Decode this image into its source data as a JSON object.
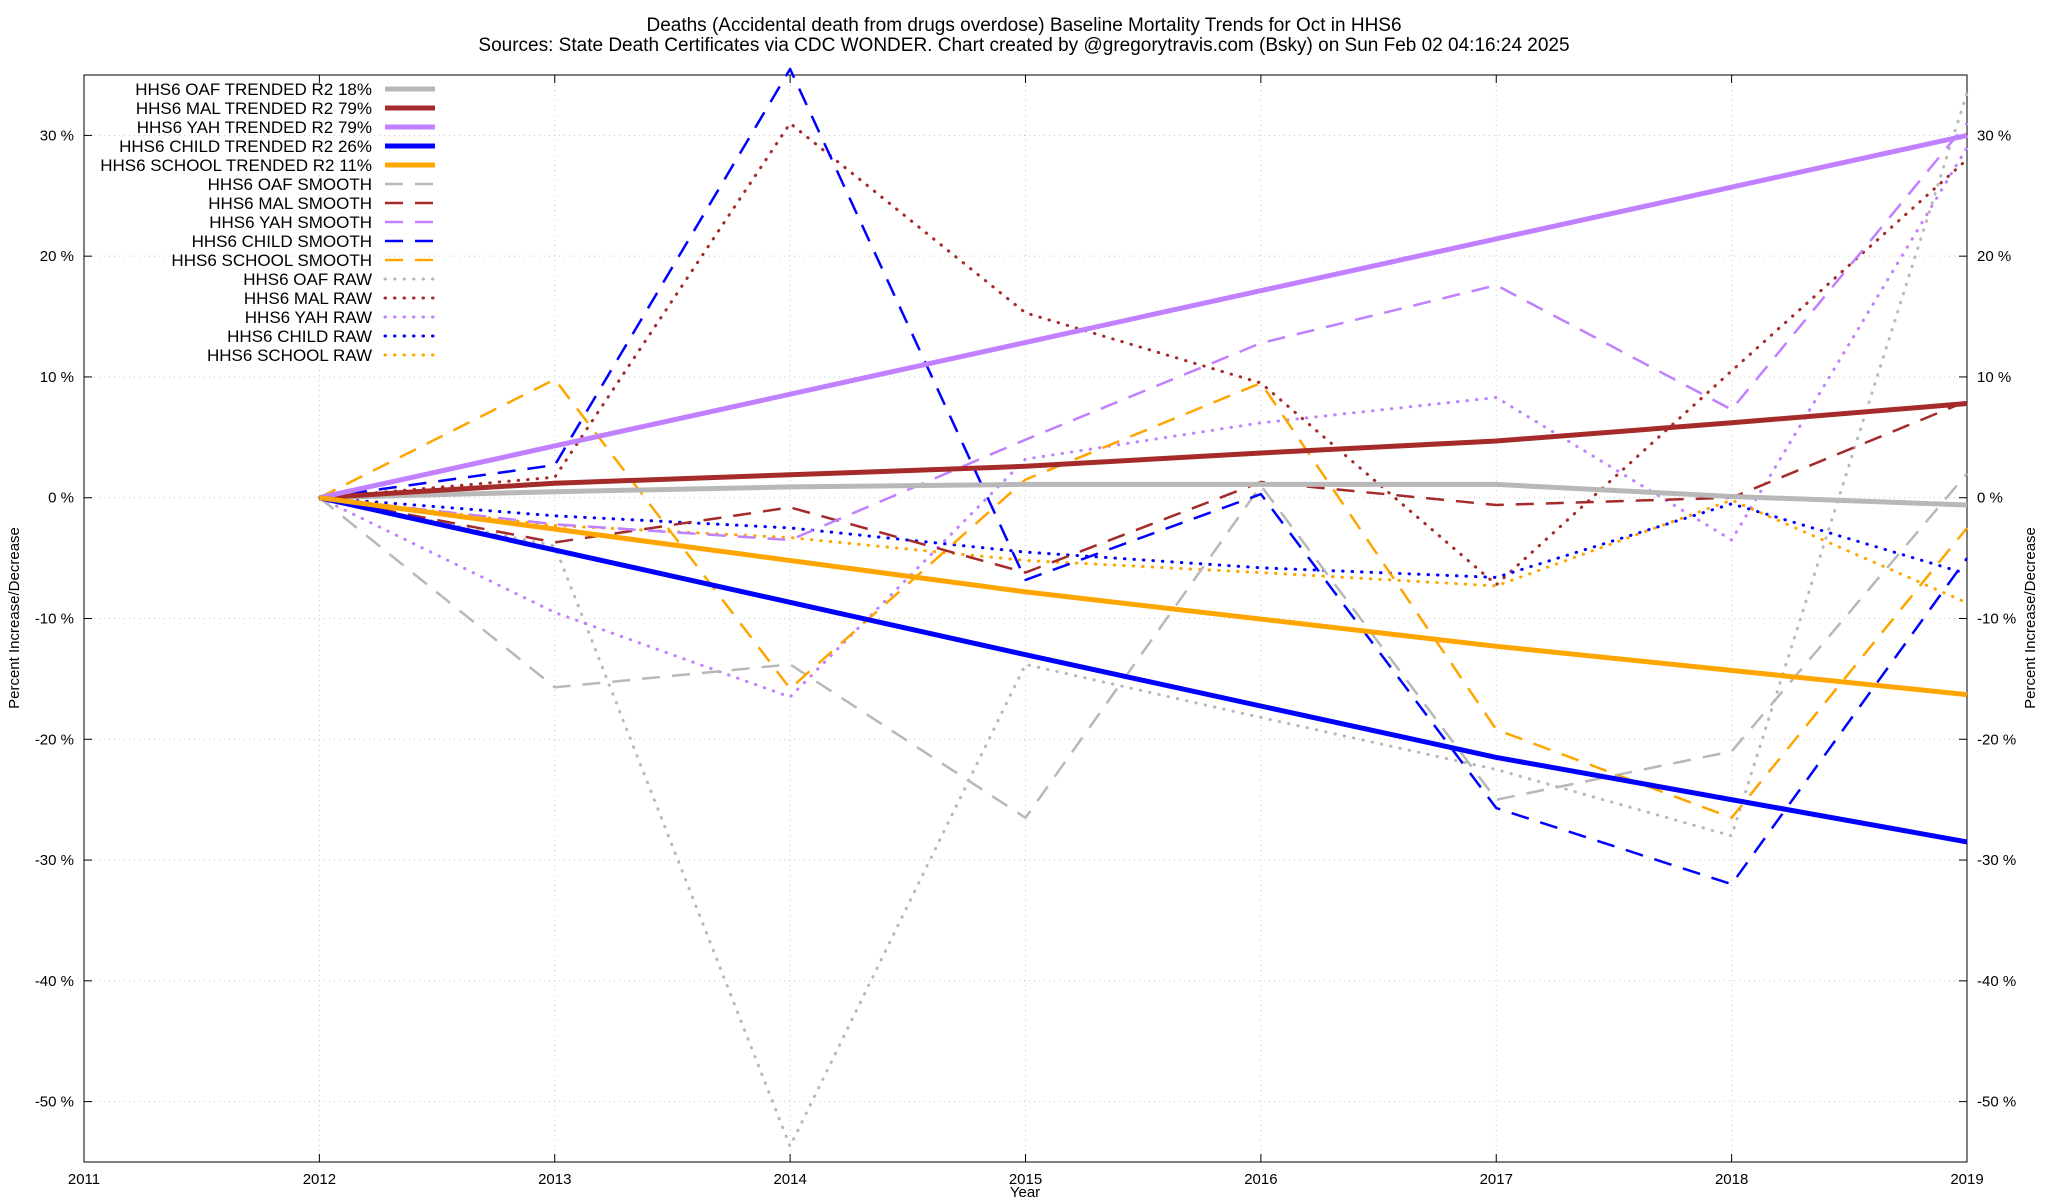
{
  "chart_data": {
    "type": "line",
    "title_line1": "Deaths (Accidental death from drugs overdose)  Baseline Mortality Trends for Oct in HHS6",
    "title_line2": "Sources: State Death Certificates via CDC WONDER.                Chart created by @gregorytravis.com (Bsky) on Sun Feb 02 04:16:24 2025",
    "xlabel": "Year",
    "ylabel_left": "Percent Increase/Decrease",
    "ylabel_right": "Percent Increase/Decrease",
    "xlim": [
      2011,
      2019
    ],
    "ylim": [
      -55,
      35
    ],
    "x_ticks": [
      2011,
      2012,
      2013,
      2014,
      2015,
      2016,
      2017,
      2018,
      2019
    ],
    "y_ticks": [
      {
        "value": 30,
        "label": "30 %"
      },
      {
        "value": 20,
        "label": "20 %"
      },
      {
        "value": 10,
        "label": "10 %"
      },
      {
        "value": 0,
        "label": "0 %"
      },
      {
        "value": -10,
        "label": "-10 %"
      },
      {
        "value": -20,
        "label": "-20 %"
      },
      {
        "value": -30,
        "label": "-30 %"
      },
      {
        "value": -40,
        "label": "-40 %"
      },
      {
        "value": -50,
        "label": "-50 %"
      }
    ],
    "grid": true,
    "legend_position": "top-left",
    "series": [
      {
        "name": "HHS6 OAF TRENDED R2  18%",
        "style": "trended",
        "color": "#b8b8b8",
        "x": [
          2012,
          2013,
          2014,
          2015,
          2016,
          2017,
          2018,
          2019
        ],
        "y": [
          0,
          0.5,
          0.9,
          1.1,
          1.1,
          1.1,
          0.1,
          -0.6
        ]
      },
      {
        "name": "HHS6 MAL TRENDED R2  79%",
        "style": "trended",
        "color": "#a52a2a",
        "x": [
          2012,
          2013,
          2014,
          2015,
          2016,
          2017,
          2018,
          2019
        ],
        "y": [
          0,
          1.2,
          1.9,
          2.6,
          3.7,
          4.7,
          6.2,
          7.8
        ]
      },
      {
        "name": "HHS6 YAH TRENDED R2  79%",
        "style": "trended",
        "color": "#c080ff",
        "x": [
          2012,
          2019
        ],
        "y": [
          0,
          30.0
        ]
      },
      {
        "name": "HHS6 CHILD TRENDED R2  26%",
        "style": "trended",
        "color": "#0000ff",
        "x": [
          2012,
          2015,
          2017,
          2019
        ],
        "y": [
          0,
          -13.0,
          -21.5,
          -28.5
        ]
      },
      {
        "name": "HHS6 SCHOOL TRENDED R2  11%",
        "style": "trended",
        "color": "#ffa500",
        "x": [
          2012,
          2015,
          2017,
          2019
        ],
        "y": [
          0,
          -7.8,
          -12.3,
          -16.3
        ]
      },
      {
        "name": "HHS6 OAF SMOOTH",
        "style": "smooth",
        "color": "#b8b8b8",
        "x": [
          2012,
          2013,
          2014,
          2015,
          2016,
          2017,
          2018,
          2019
        ],
        "y": [
          0,
          -15.7,
          -13.8,
          -26.5,
          1.0,
          -25.0,
          -21.0,
          2.0
        ]
      },
      {
        "name": "HHS6 MAL SMOOTH",
        "style": "smooth",
        "color": "#a52a2a",
        "x": [
          2012,
          2013,
          2014,
          2015,
          2016,
          2017,
          2018,
          2019
        ],
        "y": [
          0,
          -3.7,
          -0.8,
          -6.2,
          1.3,
          -0.6,
          0,
          8.0
        ]
      },
      {
        "name": "HHS6 YAH SMOOTH",
        "style": "smooth",
        "color": "#c080ff",
        "x": [
          2012,
          2013,
          2014,
          2015,
          2016,
          2017,
          2018,
          2019
        ],
        "y": [
          0,
          -2.2,
          -3.5,
          4.8,
          12.8,
          17.6,
          7.3,
          31.0
        ]
      },
      {
        "name": "HHS6 CHILD SMOOTH",
        "style": "smooth",
        "color": "#0000ff",
        "x": [
          2012,
          2013,
          2014,
          2015,
          2016,
          2017,
          2018,
          2019
        ],
        "y": [
          0,
          2.7,
          35.5,
          -6.8,
          0.3,
          -25.7,
          -32.0,
          -5.0
        ]
      },
      {
        "name": "HHS6 SCHOOL SMOOTH",
        "style": "smooth",
        "color": "#ffa500",
        "x": [
          2012,
          2013,
          2014,
          2015,
          2016,
          2017,
          2018,
          2019
        ],
        "y": [
          0,
          9.8,
          -15.8,
          1.5,
          9.5,
          -19.2,
          -26.5,
          -2.5
        ]
      },
      {
        "name": "HHS6 OAF RAW",
        "style": "raw",
        "color": "#b8b8b8",
        "x": [
          2012,
          2013,
          2014,
          2015,
          2016,
          2017,
          2018,
          2019
        ],
        "y": [
          0,
          -4.0,
          -53.7,
          -13.8,
          -18.2,
          -22.5,
          -28.0,
          33.5
        ]
      },
      {
        "name": "HHS6 MAL RAW",
        "style": "raw",
        "color": "#a52a2a",
        "x": [
          2012,
          2013,
          2014,
          2015,
          2016,
          2017,
          2018,
          2019
        ],
        "y": [
          0,
          1.7,
          31.0,
          15.3,
          9.5,
          -7.2,
          10.5,
          28.0
        ]
      },
      {
        "name": "HHS6 YAH RAW",
        "style": "raw",
        "color": "#c080ff",
        "x": [
          2012,
          2013,
          2014,
          2015,
          2016,
          2017,
          2018,
          2019
        ],
        "y": [
          0,
          -9.5,
          -16.5,
          3.2,
          6.2,
          8.3,
          -3.5,
          29.0
        ]
      },
      {
        "name": "HHS6 CHILD RAW",
        "style": "raw",
        "color": "#0000ff",
        "x": [
          2012,
          2013,
          2014,
          2015,
          2016,
          2017,
          2018,
          2019
        ],
        "y": [
          0,
          -1.5,
          -2.5,
          -4.5,
          -5.8,
          -6.6,
          -0.5,
          -6.3
        ]
      },
      {
        "name": "HHS6 SCHOOL RAW",
        "style": "raw",
        "color": "#ffa500",
        "x": [
          2012,
          2013,
          2014,
          2015,
          2016,
          2017,
          2018,
          2019
        ],
        "y": [
          0,
          -2.3,
          -3.3,
          -5.2,
          -6.2,
          -7.3,
          -0.2,
          -8.7
        ]
      }
    ]
  }
}
